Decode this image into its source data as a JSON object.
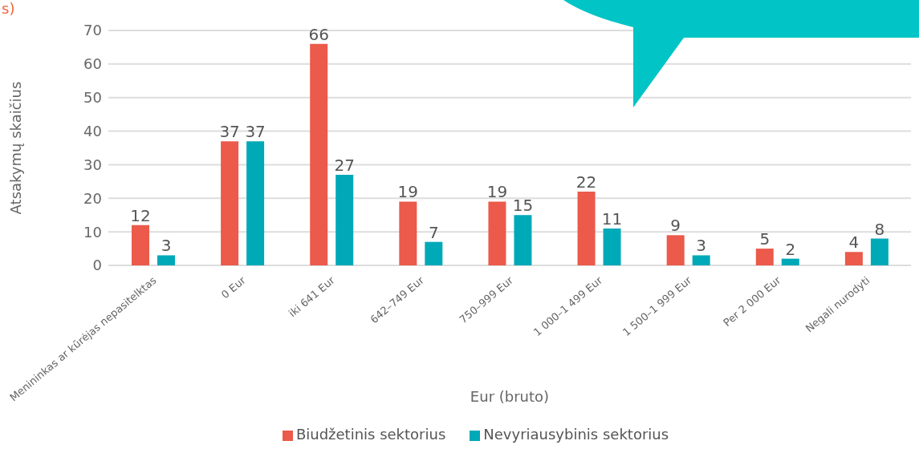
{
  "chart_data": {
    "type": "bar",
    "xlabel": "Eur (bruto)",
    "ylabel": "Atsakymų skaičius",
    "annotations": [
      "s)"
    ],
    "categories": [
      "Menininkas ar kūrėjas nepasitelktas",
      "0 Eur",
      "iki 641 Eur",
      "642–749 Eur",
      "750–999 Eur",
      "1 000–1 499 Eur",
      "1 500–1 999 Eur",
      "Per 2 000 Eur",
      "Negali nurodyti"
    ],
    "series": [
      {
        "name": "Biudžetinis sektorius",
        "color": "#eb5a4a",
        "values": [
          12,
          37,
          66,
          19,
          19,
          22,
          9,
          5,
          4
        ]
      },
      {
        "name": "Nevyriausybinis sektorius",
        "color": "#00a9b8",
        "values": [
          3,
          37,
          27,
          7,
          15,
          11,
          3,
          2,
          8
        ]
      }
    ],
    "ylim": [
      0,
      70
    ],
    "yticks": [
      0,
      10,
      20,
      30,
      40,
      50,
      60,
      70
    ],
    "grid": "y",
    "legend": "bottom",
    "data_labels": true
  }
}
